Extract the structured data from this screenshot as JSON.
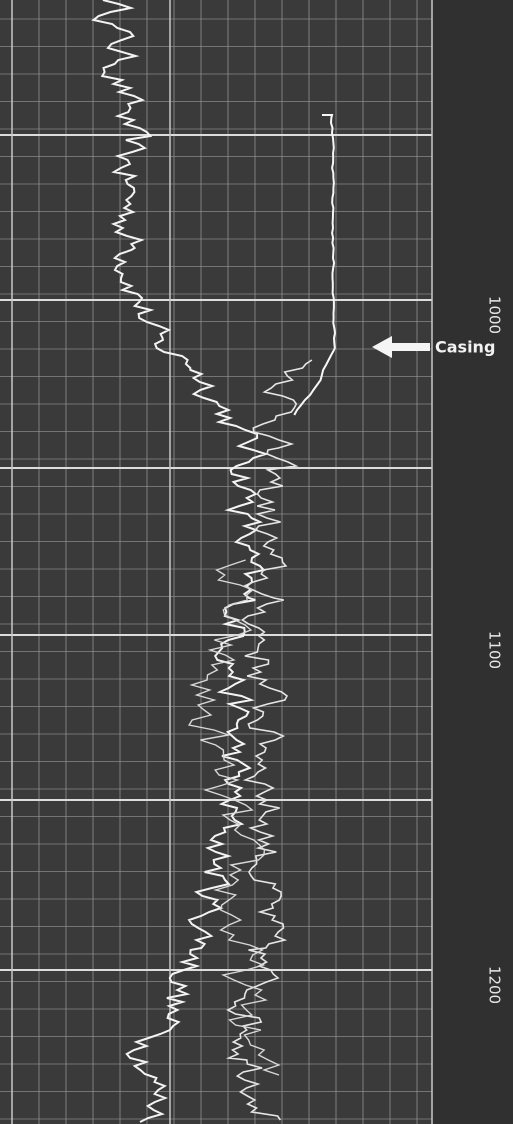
{
  "depth_labels": [
    "1000",
    "1100",
    "1200"
  ],
  "annotation": "Casing"
}
